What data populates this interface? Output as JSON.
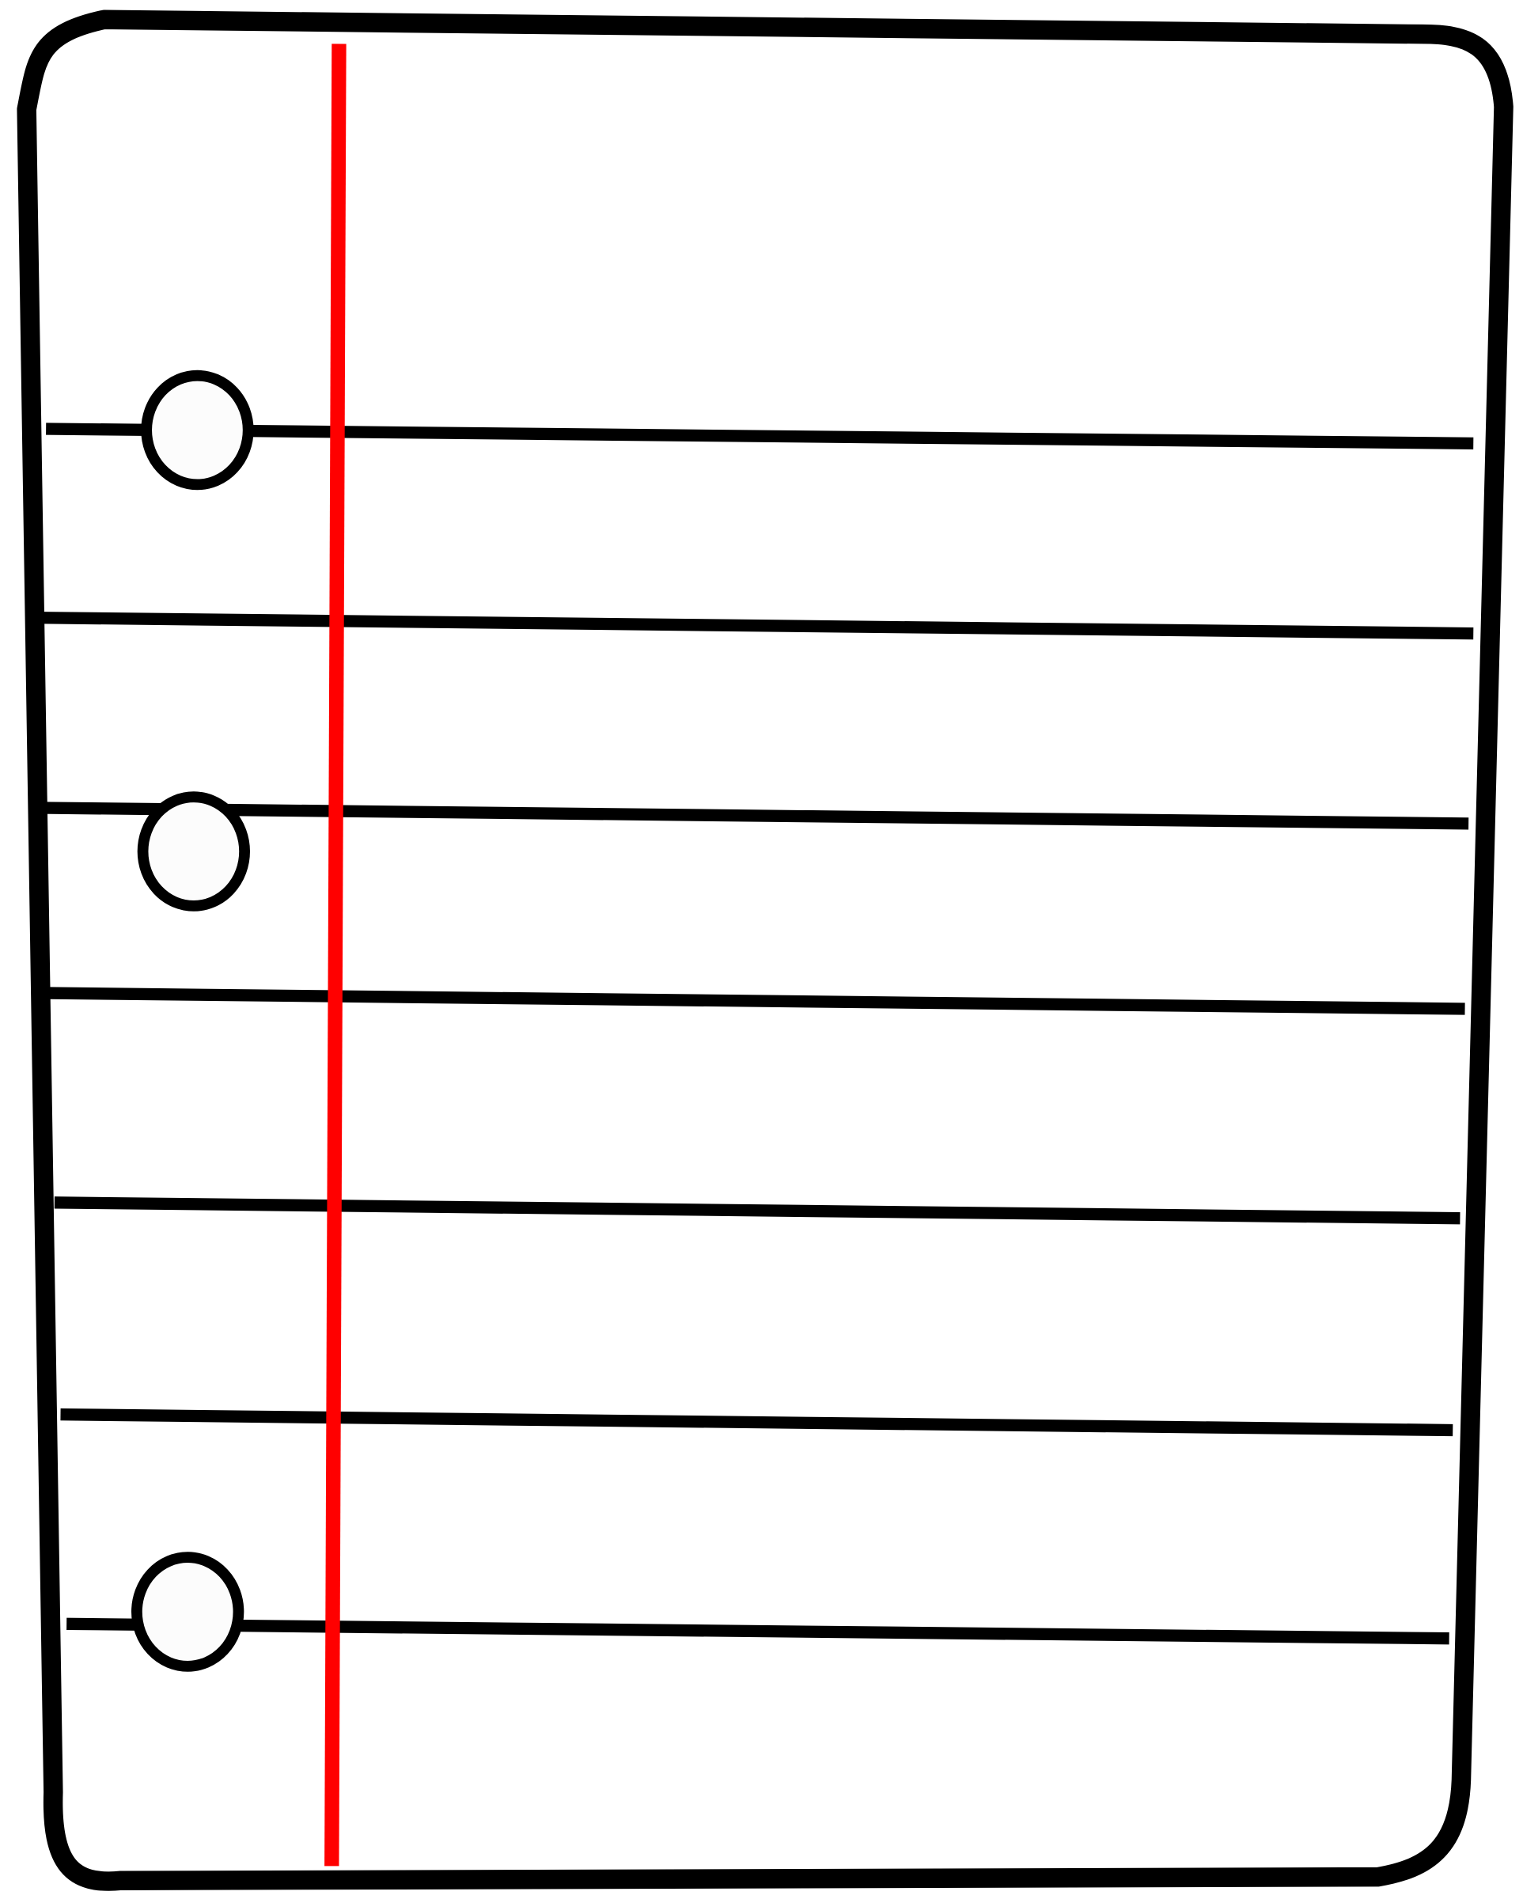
{
  "illustration": {
    "subject": "notebook-paper",
    "colors": {
      "paper": "#ffffff",
      "outline": "#000000",
      "margin_line": "#ff0000",
      "hole_fill": "#fcfcfc"
    },
    "ruled_line_count": 7,
    "punch_hole_count": 3
  }
}
